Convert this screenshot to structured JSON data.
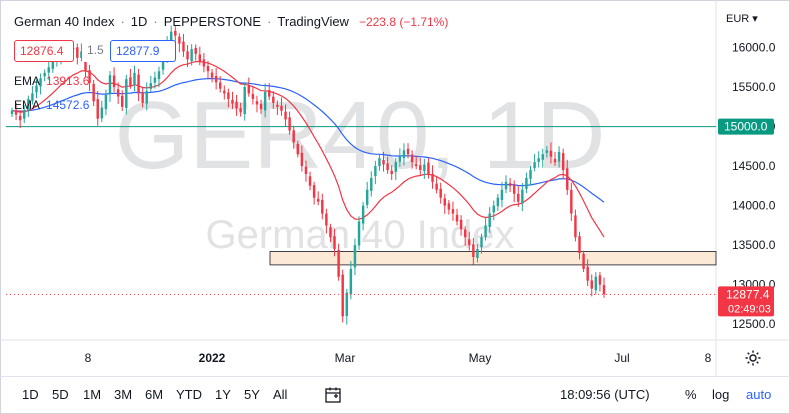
{
  "header": {
    "symbol": "German 40 Index",
    "interval": "1D",
    "exchange": "PEPPERSTONE",
    "source": "TradingView",
    "change": "−223.8 (−1.71%)"
  },
  "quote": {
    "bid": "12876.4",
    "spread": "1.5",
    "ask": "12877.9"
  },
  "indicators": [
    {
      "name": "EMA",
      "value": "13913.6",
      "color": "#f23645"
    },
    {
      "name": "EMA",
      "value": "14572.6",
      "color": "#2962ff"
    }
  ],
  "currency": "EUR",
  "watermark": {
    "big": "GER40, 1D",
    "small": "German 40 Index"
  },
  "price_axis": {
    "ticks": [
      "16000.0",
      "15500.0",
      "15000.0",
      "14500.0",
      "14000.0",
      "13500.0",
      "13000.0",
      "12500.0"
    ],
    "current_price": "12877.4",
    "countdown": "02:49:03",
    "level_label": "15000.0"
  },
  "time_axis": {
    "ticks": [
      "8",
      "2022",
      "Mar",
      "May",
      "Jul",
      "8"
    ]
  },
  "bottombar": {
    "timeframes": [
      "1D",
      "5D",
      "1M",
      "3M",
      "6M",
      "YTD",
      "1Y",
      "5Y",
      "All"
    ],
    "time": "18:09:56 (UTC)",
    "percent": "%",
    "log": "log",
    "auto": "auto"
  },
  "chart_data": {
    "type": "candlestick",
    "y_range": [
      12300,
      16500
    ],
    "colors": {
      "up": "#26a69a",
      "down": "#f23645",
      "ema_fast": "#f23645",
      "ema_slow": "#2962ff",
      "level": "#089981"
    },
    "horizontal_level": 15000,
    "zone": [
      13250,
      13420
    ],
    "closes": [
      15200,
      15150,
      15080,
      15210,
      15350,
      15420,
      15520,
      15610,
      15680,
      15750,
      15820,
      15900,
      15960,
      15930,
      16010,
      15980,
      15870,
      15950,
      15700,
      15550,
      15320,
      15100,
      15240,
      15400,
      15650,
      15500,
      15380,
      15250,
      15600,
      15520,
      15680,
      15420,
      15300,
      15450,
      15550,
      15620,
      15700,
      15900,
      16050,
      16200,
      16150,
      16050,
      15950,
      15850,
      15980,
      15920,
      15820,
      15760,
      15700,
      15620,
      15560,
      15480,
      15420,
      15350,
      15290,
      15230,
      15180,
      15500,
      15420,
      15350,
      15280,
      15220,
      15440,
      15380,
      15300,
      15250,
      15200,
      15090,
      14950,
      14800,
      14650,
      14500,
      14400,
      14250,
      14100,
      14050,
      13900,
      13750,
      13600,
      13450,
      13100,
      12600,
      12900,
      13200,
      13500,
      13800,
      14000,
      14200,
      14350,
      14500,
      14600,
      14520,
      14450,
      14400,
      14550,
      14620,
      14700,
      14650,
      14550,
      14500,
      14450,
      14520,
      14400,
      14300,
      14200,
      14100,
      14000,
      13950,
      13900,
      13800,
      13700,
      13600,
      13500,
      13350,
      13450,
      13600,
      13750,
      13900,
      14000,
      14100,
      14200,
      14300,
      14250,
      14150,
      14050,
      14200,
      14350,
      14450,
      14550,
      14600,
      14650,
      14700,
      14620,
      14550,
      14680,
      14450,
      14200,
      13900,
      13600,
      13400,
      13200,
      13050,
      12950,
      13100,
      13000,
      12880
    ]
  }
}
